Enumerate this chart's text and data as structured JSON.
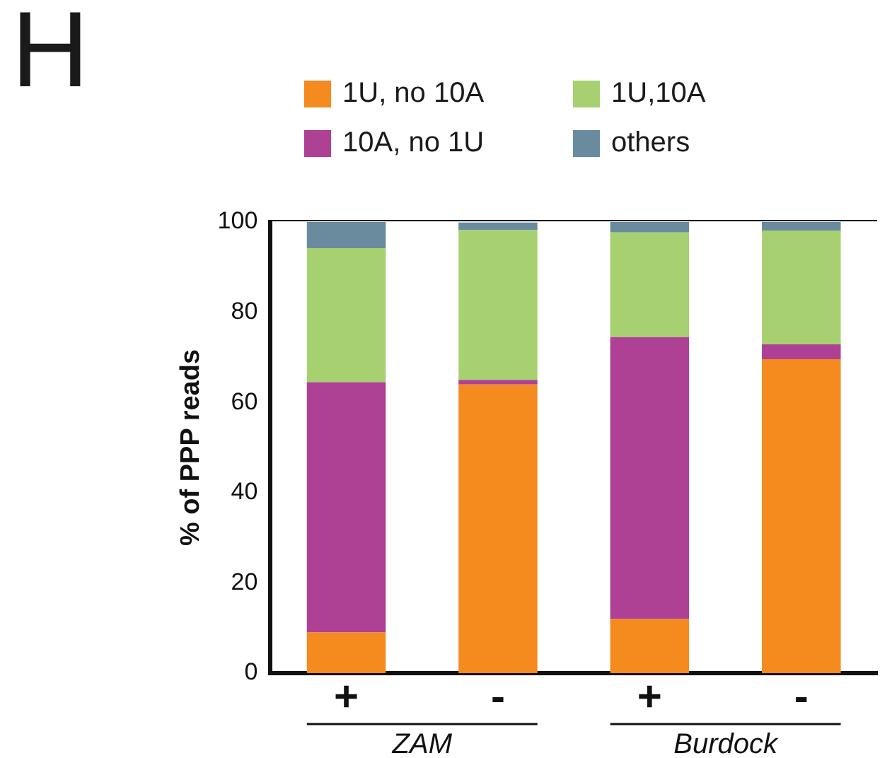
{
  "chart_data": {
    "type": "bar",
    "title": "H",
    "ylabel": "% of PPP reads",
    "categories": [
      "+",
      "-",
      "+",
      "-"
    ],
    "stacked": true,
    "legend": "top",
    "grid": false,
    "ylim": [
      0,
      100
    ],
    "yticks": [
      0,
      20,
      40,
      60,
      80,
      100
    ],
    "annotations": [
      "ZAM",
      "Burdock"
    ],
    "series": [
      {
        "name": "1U, no 10A",
        "color": "#f58a1f",
        "values": [
          9,
          64,
          12,
          69.6
        ]
      },
      {
        "name": "10A, no 1U",
        "color": "#ae4193",
        "values": [
          55.5,
          1,
          62.5,
          3.3
        ]
      },
      {
        "name": "1U,10A",
        "color": "#a7d171",
        "values": [
          29.7,
          33.2,
          23.2,
          25.2
        ]
      },
      {
        "name": "others",
        "color": "#6a8b9e",
        "values": [
          5.8,
          1.7,
          2.3,
          1.9
        ]
      }
    ]
  }
}
